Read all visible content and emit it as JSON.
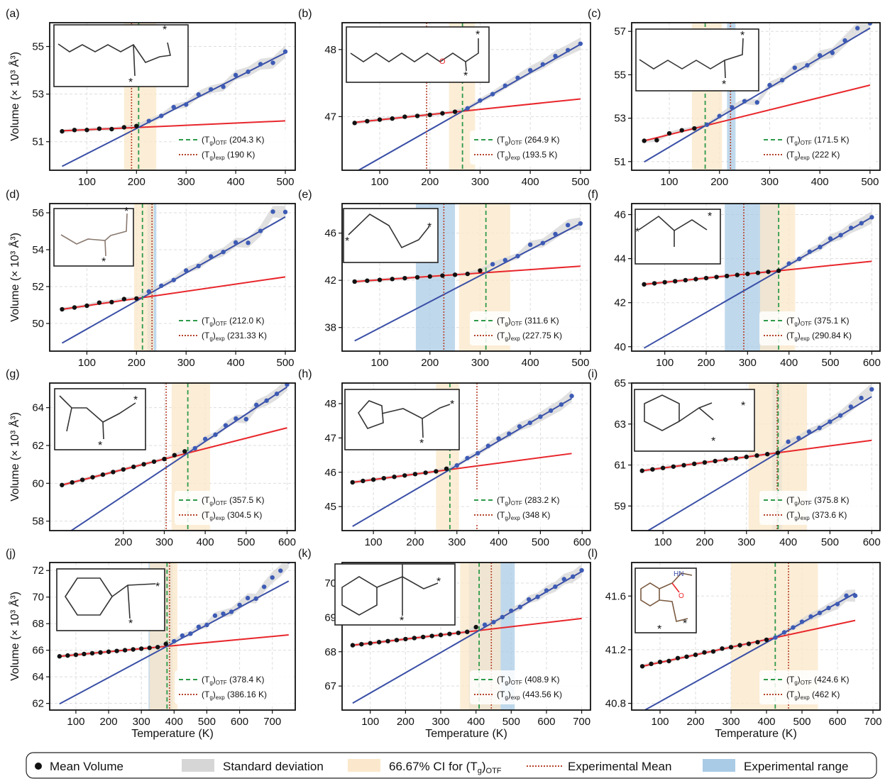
{
  "legend": {
    "items": [
      {
        "key": "mean_volume",
        "label": "Mean Volume"
      },
      {
        "key": "std",
        "label": "Standard deviation"
      },
      {
        "key": "ci",
        "label": "66.67% CI for (T",
        "sub": "g",
        "tail": ")",
        "sub2": "OTF"
      },
      {
        "key": "exp_mean",
        "label": "Experimental Mean"
      },
      {
        "key": "exp_range",
        "label": "Experimental range"
      }
    ]
  },
  "colors": {
    "mean_dot_glass": "#111111",
    "mean_dot_rubber": "#3d5bb5",
    "glass_fit": "#e8262b",
    "rubber_fit": "#3a4fa6",
    "otf_line": "#2e9a4a",
    "exp_line": "#b5432b",
    "std_band": "#d6d6d6",
    "ci_band": "#fbe8cc",
    "exp_range_band": "#a9cbe6"
  },
  "chart_data": [
    {
      "panel": "(a)",
      "type": "scatter",
      "xlabel": "",
      "ylabel": "Volume (× 10³ Å³)",
      "xlim": [
        25,
        520
      ],
      "ylim": [
        49.8,
        56.0
      ],
      "xticks": [
        100,
        200,
        300,
        400,
        500
      ],
      "yticks": [
        51,
        53,
        55
      ],
      "x_start": 50,
      "x_end": 500,
      "x_step": 25,
      "tg_otf": 204.3,
      "tg_exp": 190,
      "glass_fit": {
        "y_at_tg": 51.6,
        "slope": 0.00093
      },
      "rubber_fit": {
        "y_at_tg": 51.6,
        "slope": 0.0106
      },
      "ci": [
        175,
        240
      ],
      "exp_range": null,
      "legend_otf": "(Tg)OTF (204.3 K)",
      "legend_otf_value": "(204.3 K)",
      "legend_exp_value": "(190 K)",
      "noise": [
        -0.02,
        0.01,
        -0.01,
        0.02,
        -0.02,
        0.03,
        0.06,
        0.05,
        0.0,
        0.1,
        -0.05,
        0.1,
        0.05,
        -0.1,
        0.12,
        0.0,
        0.05,
        -0.15,
        0.05,
        0.35
      ]
    },
    {
      "panel": "(b)",
      "type": "scatter",
      "xlabel": "",
      "ylabel": "",
      "xlim": [
        25,
        520
      ],
      "ylim": [
        46.2,
        48.4
      ],
      "xticks": [
        100,
        200,
        300,
        400,
        500
      ],
      "yticks": [
        47,
        48
      ],
      "x_start": 50,
      "x_end": 500,
      "x_step": 25,
      "tg_otf": 264.9,
      "tg_exp": 193.5,
      "glass_fit": {
        "y_at_tg": 47.08,
        "slope": 0.00078
      },
      "rubber_fit": {
        "y_at_tg": 47.08,
        "slope": 0.00425
      },
      "ci": [
        238,
        290
      ],
      "exp_range": null,
      "legend_otf_value": "(264.9 K)",
      "legend_exp_value": "(193.5 K)",
      "noise": [
        -0.02,
        0.0,
        0.01,
        0.0,
        0.02,
        0.0,
        -0.01,
        0.0,
        0.01,
        0.0,
        0.03,
        0.0,
        0.05,
        0.08,
        0.1,
        0.05,
        0.1,
        0.05,
        0.02,
        0.05
      ]
    },
    {
      "panel": "(c)",
      "type": "scatter",
      "xlabel": "",
      "ylabel": "",
      "xlim": [
        25,
        520
      ],
      "ylim": [
        50.6,
        57.4
      ],
      "xticks": [
        100,
        200,
        300,
        400,
        500
      ],
      "yticks": [
        51,
        53,
        55,
        57
      ],
      "x_start": 50,
      "x_end": 500,
      "x_step": 25,
      "tg_otf": 171.5,
      "tg_exp": 222,
      "glass_fit": {
        "y_at_tg": 52.65,
        "slope": 0.0057
      },
      "rubber_fit": {
        "y_at_tg": 52.65,
        "slope": 0.0137
      },
      "ci": [
        145,
        205
      ],
      "exp_range": [
        215,
        232
      ],
      "legend_otf_value": "(171.5 K)",
      "legend_exp_value": "(222 K)",
      "noise": [
        0.0,
        -0.1,
        0.05,
        0.05,
        0.0,
        0.0,
        0.05,
        0.1,
        0.05,
        -0.3,
        0.1,
        0.0,
        0.2,
        0.0,
        0.1,
        -0.1,
        0.1,
        0.3,
        0.2,
        0.0
      ]
    },
    {
      "panel": "(d)",
      "type": "scatter",
      "xlabel": "",
      "ylabel": "Volume (× 10³ Å³)",
      "xlim": [
        25,
        520
      ],
      "ylim": [
        48.5,
        56.5
      ],
      "xticks": [
        100,
        200,
        300,
        400,
        500
      ],
      "yticks": [
        50,
        52,
        54,
        56
      ],
      "x_start": 50,
      "x_end": 500,
      "x_step": 25,
      "tg_otf": 212.0,
      "tg_exp": 231.33,
      "glass_fit": {
        "y_at_tg": 51.4,
        "slope": 0.0039
      },
      "rubber_fit": {
        "y_at_tg": 51.4,
        "slope": 0.0152
      },
      "ci": [
        195,
        235
      ],
      "exp_range": [
        222,
        240
      ],
      "legend_otf_value": "(212.0 K)",
      "legend_exp_value": "(231.33 K)",
      "noise": [
        0.0,
        0.0,
        0.0,
        0.05,
        0.0,
        0.05,
        0.0,
        0.1,
        0.05,
        0.0,
        0.1,
        0.0,
        0.1,
        0.0,
        0.1,
        -0.2,
        0.0,
        0.5,
        0.2,
        0.0
      ]
    },
    {
      "panel": "(e)",
      "type": "scatter",
      "xlabel": "",
      "ylabel": "",
      "xlim": [
        25,
        520
      ],
      "ylim": [
        36.0,
        48.5
      ],
      "xticks": [
        100,
        200,
        300,
        400,
        500
      ],
      "yticks": [
        38,
        42,
        46
      ],
      "x_start": 50,
      "x_end": 500,
      "x_step": 25,
      "tg_otf": 311.6,
      "tg_exp": 227.75,
      "glass_fit": {
        "y_at_tg": 42.65,
        "slope": 0.0029
      },
      "rubber_fit": {
        "y_at_tg": 42.65,
        "slope": 0.0221
      },
      "ci": [
        258,
        360
      ],
      "exp_range": [
        172,
        250
      ],
      "legend_otf_value": "(311.6 K)",
      "legend_exp_value": "(227.75 K)",
      "noise": [
        0.0,
        0.0,
        0.0,
        0.0,
        0.0,
        0.0,
        0.0,
        0.0,
        0.0,
        0.0,
        0.1,
        0.2,
        0.1,
        0.0,
        0.2,
        0.0,
        0.1,
        0.2,
        0.0,
        0.3
      ]
    },
    {
      "panel": "(f)",
      "type": "scatter",
      "xlabel": "",
      "ylabel": "",
      "xlim": [
        20,
        620
      ],
      "ylim": [
        39.8,
        46.5
      ],
      "xticks": [
        100,
        200,
        300,
        400,
        500,
        600
      ],
      "yticks": [
        40,
        42,
        44,
        46
      ],
      "x_start": 50,
      "x_end": 600,
      "x_step": 25,
      "tg_otf": 375.1,
      "tg_exp": 290.84,
      "glass_fit": {
        "y_at_tg": 43.45,
        "slope": 0.0019
      },
      "rubber_fit": {
        "y_at_tg": 43.45,
        "slope": 0.0108
      },
      "ci": [
        330,
        415
      ],
      "exp_range": [
        245,
        375
      ],
      "legend_otf_value": "(375.1 K)",
      "legend_exp_value": "(290.84 K)",
      "noise": [
        0.0,
        0.0,
        0.0,
        0.0,
        0.0,
        0.0,
        0.0,
        0.0,
        0.0,
        0.0,
        0.0,
        0.0,
        0.0,
        0.0,
        0.05,
        0.0,
        0.05,
        0.0,
        0.1,
        0.0,
        0.05,
        0.0,
        0.0
      ]
    },
    {
      "panel": "(g)",
      "type": "scatter",
      "xlabel": "",
      "ylabel": "Volume (× 10³ Å³)",
      "xlim": [
        20,
        620
      ],
      "ylim": [
        57.5,
        65.3
      ],
      "xticks": [
        200,
        300,
        400,
        500,
        600
      ],
      "yticks": [
        58,
        60,
        62,
        64
      ],
      "x_start": 50,
      "x_end": 600,
      "x_step": 25,
      "tg_otf": 357.5,
      "tg_exp": 304.5,
      "glass_fit": {
        "y_at_tg": 61.6,
        "slope": 0.0055
      },
      "rubber_fit": {
        "y_at_tg": 61.6,
        "slope": 0.0144
      },
      "ci": [
        318,
        412
      ],
      "exp_range": null,
      "legend_otf_value": "(357.5 K)",
      "legend_exp_value": "(304.5 K)",
      "noise": [
        0.0,
        0.0,
        0.0,
        0.0,
        0.0,
        0.0,
        0.0,
        0.0,
        0.0,
        0.0,
        0.0,
        0.05,
        0.1,
        0.0,
        0.1,
        0.0,
        0.1,
        0.1,
        -0.2,
        0.1,
        0.0,
        0.0,
        0.1
      ]
    },
    {
      "panel": "(h)",
      "type": "scatter",
      "xlabel": "",
      "ylabel": "",
      "xlim": [
        25,
        620
      ],
      "ylim": [
        44.3,
        48.6
      ],
      "xticks": [
        100,
        200,
        300,
        400,
        500,
        600
      ],
      "yticks": [
        45,
        46,
        47,
        48
      ],
      "x_start": 50,
      "x_end": 575,
      "x_step": 25,
      "tg_otf": 283.2,
      "tg_exp": 348,
      "glass_fit": {
        "y_at_tg": 46.08,
        "slope": 0.0016
      },
      "rubber_fit": {
        "y_at_tg": 46.08,
        "slope": 0.0071
      },
      "ci": [
        250,
        305
      ],
      "exp_range": null,
      "legend_otf_value": "(283.2 K)",
      "legend_exp_value": "(348 K)",
      "noise": [
        0.0,
        0.0,
        0.0,
        0.0,
        0.0,
        0.0,
        0.0,
        0.0,
        0.0,
        0.05,
        0.0,
        0.05,
        0.0,
        0.05,
        0.1,
        0.05,
        0.1,
        0.0,
        0.0,
        0.0,
        0.0,
        0.1
      ]
    },
    {
      "panel": "(i)",
      "type": "scatter",
      "xlabel": "",
      "ylabel": "",
      "xlim": [
        25,
        620
      ],
      "ylim": [
        57.8,
        65.0
      ],
      "xticks": [
        100,
        200,
        300,
        400,
        500,
        600
      ],
      "yticks": [
        59,
        61,
        63,
        65
      ],
      "x_start": 50,
      "x_end": 600,
      "x_step": 25,
      "tg_otf": 375.8,
      "tg_exp": 373.6,
      "glass_fit": {
        "y_at_tg": 61.6,
        "slope": 0.0027
      },
      "rubber_fit": {
        "y_at_tg": 61.6,
        "slope": 0.0122
      },
      "ci": [
        305,
        445
      ],
      "exp_range": [
        362,
        385
      ],
      "legend_otf_value": "(375.8 K)",
      "legend_exp_value": "(373.6 K)",
      "noise": [
        0.0,
        0.0,
        0.0,
        0.0,
        0.0,
        0.0,
        0.0,
        0.0,
        0.0,
        0.0,
        0.0,
        0.0,
        0.0,
        0.0,
        0.2,
        0.1,
        0.1,
        0.0,
        0.0,
        0.0,
        0.1,
        0.2,
        0.3
      ]
    },
    {
      "panel": "(j)",
      "type": "scatter",
      "xlabel": "Temperature (K)",
      "ylabel": "Volume (× 10³ Å³)",
      "xlim": [
        20,
        770
      ],
      "ylim": [
        61.5,
        72.6
      ],
      "xticks": [
        100,
        200,
        300,
        400,
        500,
        600,
        700
      ],
      "yticks": [
        62,
        64,
        66,
        68,
        70,
        72
      ],
      "x_start": 50,
      "x_end": 750,
      "x_step": 25,
      "tg_otf": 378.4,
      "tg_exp": 386.16,
      "glass_fit": {
        "y_at_tg": 66.3,
        "slope": 0.0023
      },
      "rubber_fit": {
        "y_at_tg": 66.3,
        "slope": 0.0132
      },
      "ci": [
        325,
        410
      ],
      "exp_range": [
        322,
        395
      ],
      "legend_otf_value": "(378.4 K)",
      "legend_exp_value": "(386.16 K)",
      "noise": [
        0.0,
        0.0,
        0.0,
        0.0,
        0.0,
        0.0,
        0.0,
        0.0,
        0.0,
        0.0,
        0.0,
        0.0,
        0.0,
        0.1,
        0.05,
        0.1,
        0.0,
        0.1,
        0.0,
        0.2,
        0.1,
        0.0,
        0.1,
        0.2,
        0.0,
        0.3,
        0.5,
        0.6,
        0.8
      ]
    },
    {
      "panel": "(k)",
      "type": "scatter",
      "xlabel": "Temperature (K)",
      "ylabel": "",
      "xlim": [
        20,
        725
      ],
      "ylim": [
        66.3,
        70.6
      ],
      "xticks": [
        100,
        200,
        300,
        400,
        500,
        600,
        700
      ],
      "yticks": [
        67,
        68,
        69,
        70
      ],
      "x_start": 50,
      "x_end": 700,
      "x_step": 25,
      "tg_otf": 408.9,
      "tg_exp": 443.56,
      "glass_fit": {
        "y_at_tg": 68.62,
        "slope": 0.0012
      },
      "rubber_fit": {
        "y_at_tg": 68.62,
        "slope": 0.0059
      },
      "ci": [
        355,
        470
      ],
      "exp_range": [
        380,
        510
      ],
      "legend_otf_value": "(408.9 K)",
      "legend_exp_value": "(443.56 K)",
      "noise": [
        0.0,
        0.0,
        0.0,
        0.0,
        0.0,
        0.0,
        0.0,
        0.0,
        0.0,
        0.0,
        0.0,
        0.0,
        0.0,
        0.0,
        0.15,
        0.1,
        0.0,
        0.0,
        0.05,
        0.0,
        0.1,
        0.0,
        0.05,
        0.0,
        0.1,
        0.0,
        0.05
      ]
    },
    {
      "panel": "(l)",
      "type": "scatter",
      "xlabel": "Temperature (K)",
      "ylabel": "",
      "xlim": [
        20,
        720
      ],
      "ylim": [
        40.75,
        41.85
      ],
      "xticks": [
        100,
        200,
        300,
        400,
        500,
        600,
        700
      ],
      "yticks": [
        40.8,
        41.2,
        41.6
      ],
      "x_start": 50,
      "x_end": 650,
      "x_step": 25,
      "tg_otf": 424.6,
      "tg_exp": 462,
      "glass_fit": {
        "y_at_tg": 41.29,
        "slope": 0.00057
      },
      "rubber_fit": {
        "y_at_tg": 41.29,
        "slope": 0.00147
      },
      "ci": [
        300,
        545
      ],
      "exp_range": null,
      "legend_otf_value": "(424.6 K)",
      "legend_exp_value": "(462 K)",
      "noise": [
        0.0,
        0.02,
        0.02,
        -0.02,
        0.02,
        0.0,
        0.0,
        0.02,
        -0.02,
        0.02,
        0.0,
        0.0,
        -0.02,
        -0.03,
        -0.01,
        0.0,
        0.01,
        0.01,
        0.04,
        0.05,
        0.0,
        0.0,
        -0.04,
        0.1,
        -0.1
      ]
    }
  ]
}
